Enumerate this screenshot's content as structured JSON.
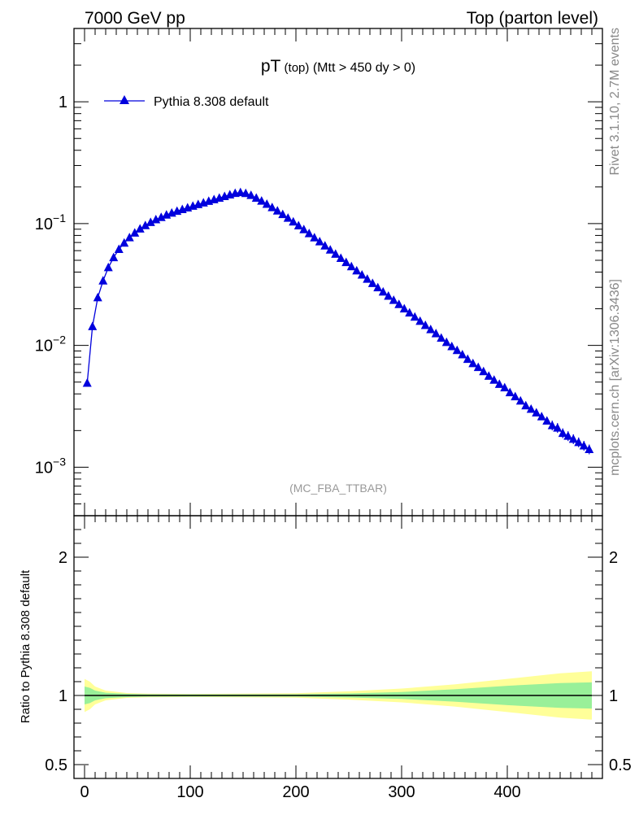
{
  "header": {
    "left": "7000 GeV pp",
    "right": "Top (parton level)"
  },
  "side": {
    "top": "Rivet 3.1.10,  2.7M events",
    "bottom": "mcplots.cern.ch [arXiv:1306.3436]"
  },
  "colors": {
    "line": "#0000dd",
    "band_inner": "#99f099",
    "band_outer": "#ffff99",
    "watermark": "#999999",
    "side_text": "#888888"
  },
  "chart_data": [
    {
      "type": "line",
      "title_main": "pT",
      "title_sub1": " (top)",
      "title_sub2": "  (Mtt > 450 dy > 0)",
      "watermark": "(MC_FBA_TTBAR)",
      "legend": "Pythia 8.308 default",
      "legend_placement": "top-left",
      "yscale": "log",
      "xlim": [
        -10,
        490
      ],
      "ylim": [
        0.0004,
        4
      ],
      "ytick_labels": [
        {
          "value": 1,
          "label": "1"
        },
        {
          "value": 0.1,
          "base": "10",
          "exp": "−1"
        },
        {
          "value": 0.01,
          "base": "10",
          "exp": "−2"
        },
        {
          "value": 0.001,
          "base": "10",
          "exp": "−3"
        }
      ],
      "series": [
        {
          "name": "Pythia 8.308 default",
          "x": [
            2.5,
            7.5,
            12.5,
            17.5,
            22.5,
            27.5,
            32.5,
            37.5,
            42.5,
            47.5,
            52.5,
            57.5,
            62.5,
            67.5,
            72.5,
            77.5,
            82.5,
            87.5,
            92.5,
            97.5,
            102.5,
            107.5,
            112.5,
            117.5,
            122.5,
            127.5,
            132.5,
            137.5,
            142.5,
            147.5,
            152.5,
            157.5,
            162.5,
            167.5,
            172.5,
            177.5,
            182.5,
            187.5,
            192.5,
            197.5,
            202.5,
            207.5,
            212.5,
            217.5,
            222.5,
            227.5,
            232.5,
            237.5,
            242.5,
            247.5,
            252.5,
            257.5,
            262.5,
            267.5,
            272.5,
            277.5,
            282.5,
            287.5,
            292.5,
            297.5,
            302.5,
            307.5,
            312.5,
            317.5,
            322.5,
            327.5,
            332.5,
            337.5,
            342.5,
            347.5,
            352.5,
            357.5,
            362.5,
            367.5,
            372.5,
            377.5,
            382.5,
            387.5,
            392.5,
            397.5,
            402.5,
            407.5,
            412.5,
            417.5,
            422.5,
            427.5,
            432.5,
            437.5,
            442.5,
            447.5,
            452.5,
            457.5,
            462.5,
            467.5,
            472.5,
            477.5
          ],
          "y": [
            0.0049,
            0.0143,
            0.0247,
            0.0339,
            0.0436,
            0.0527,
            0.0615,
            0.0693,
            0.0768,
            0.0838,
            0.0906,
            0.0964,
            0.1023,
            0.1078,
            0.1125,
            0.1178,
            0.1222,
            0.1264,
            0.1306,
            0.1349,
            0.1392,
            0.1436,
            0.1481,
            0.1526,
            0.1574,
            0.1622,
            0.1671,
            0.1723,
            0.1775,
            0.18,
            0.177,
            0.1706,
            0.1621,
            0.1533,
            0.1444,
            0.1356,
            0.1272,
            0.1189,
            0.111,
            0.1033,
            0.0961,
            0.0893,
            0.0828,
            0.0766,
            0.071,
            0.0657,
            0.0608,
            0.0562,
            0.0519,
            0.048,
            0.0444,
            0.041,
            0.0379,
            0.035,
            0.0323,
            0.0298,
            0.0275,
            0.0254,
            0.0235,
            0.0217,
            0.02,
            0.0185,
            0.0171,
            0.0158,
            0.0146,
            0.0135,
            0.0125,
            0.0115,
            0.0106,
            0.0098,
            0.0091,
            0.0084,
            0.0077,
            0.0071,
            0.0066,
            0.0061,
            0.0056,
            0.0052,
            0.0048,
            0.0045,
            0.0041,
            0.0038,
            0.0035,
            0.0032,
            0.003,
            0.0028,
            0.0026,
            0.0024,
            0.0022,
            0.0021,
            0.0019,
            0.0018,
            0.0017,
            0.0016,
            0.0015,
            0.0014
          ]
        }
      ]
    },
    {
      "type": "area",
      "ylabel": "Ratio to Pythia 8.308 default",
      "xlim": [
        -10,
        490
      ],
      "ylim": [
        0.4,
        2.3
      ],
      "xtick_labels": [
        "0",
        "100",
        "200",
        "300",
        "400"
      ],
      "xticks": [
        0,
        100,
        200,
        300,
        400
      ],
      "ytick_labels": [
        "0.5",
        "1",
        "2"
      ],
      "yticks": [
        0.5,
        1,
        2
      ],
      "reference_line": 1,
      "band_x": [
        0,
        5,
        10,
        20,
        40,
        60,
        100,
        200,
        250,
        300,
        350,
        400,
        450,
        480
      ],
      "band_inner_half": [
        0.065,
        0.055,
        0.035,
        0.02,
        0.012,
        0.009,
        0.008,
        0.009,
        0.015,
        0.025,
        0.045,
        0.07,
        0.09,
        0.095
      ],
      "band_outer_half": [
        0.12,
        0.1,
        0.065,
        0.035,
        0.018,
        0.013,
        0.011,
        0.016,
        0.03,
        0.05,
        0.08,
        0.12,
        0.16,
        0.175
      ]
    }
  ]
}
